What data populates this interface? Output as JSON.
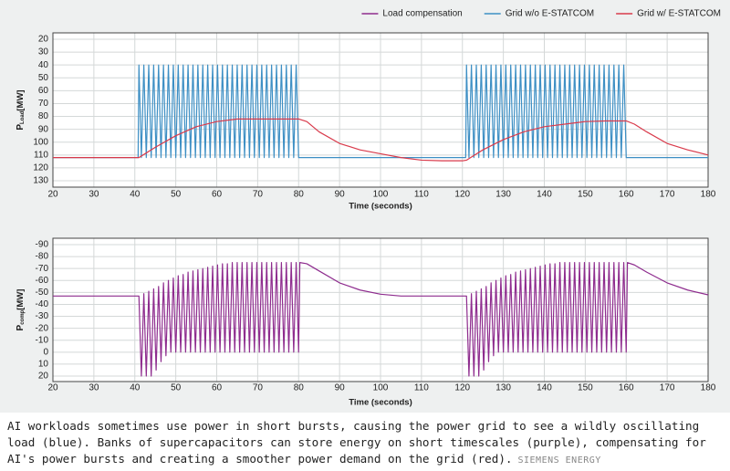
{
  "chart_data": [
    {
      "type": "line",
      "x_label": "Time (seconds)",
      "y_label": {
        "symbol": "P",
        "subscript": "Load",
        "unit": "[MW]"
      },
      "xlim": [
        20,
        180
      ],
      "xticks": [
        20,
        30,
        40,
        50,
        60,
        70,
        80,
        90,
        100,
        110,
        120,
        130,
        140,
        150,
        160,
        170,
        180
      ],
      "ylim": [
        130,
        20
      ],
      "yticks": [
        20,
        30,
        40,
        50,
        60,
        70,
        80,
        90,
        100,
        110,
        120,
        130
      ],
      "grid": true,
      "legend": "top-right",
      "series": [
        {
          "name": "Grid w/o E-STATCOM",
          "color": "#3d8fc4",
          "x": [
            20,
            40.8,
            41,
            41.6,
            42.2,
            42.8,
            43.4,
            44,
            44.6,
            45.2,
            45.8,
            46.4,
            47,
            47.6,
            48.2,
            48.8,
            49.4,
            50,
            50.6,
            51.2,
            51.8,
            52.4,
            53,
            53.6,
            54.2,
            54.8,
            55.4,
            56,
            56.6,
            57.2,
            57.8,
            58.4,
            59,
            59.6,
            60.2,
            60.8,
            61.4,
            62,
            62.6,
            63.2,
            63.8,
            64.4,
            65,
            65.6,
            66.2,
            66.8,
            67.4,
            68,
            68.6,
            69.2,
            69.8,
            70.4,
            71,
            71.6,
            72.2,
            72.8,
            73.4,
            74,
            74.6,
            75.2,
            75.8,
            76.4,
            77,
            77.6,
            78.2,
            78.8,
            79.4,
            80,
            120.8,
            121,
            121.6,
            122.2,
            122.8,
            123.4,
            124,
            124.6,
            125.2,
            125.8,
            126.4,
            127,
            127.6,
            128.2,
            128.8,
            129.4,
            130,
            130.6,
            131.2,
            131.8,
            132.4,
            133,
            133.6,
            134.2,
            134.8,
            135.4,
            136,
            136.6,
            137.2,
            137.8,
            138.4,
            139,
            139.6,
            140.2,
            140.8,
            141.4,
            142,
            142.6,
            143.2,
            143.8,
            144.4,
            145,
            145.6,
            146.2,
            146.8,
            147.4,
            148,
            148.6,
            149.2,
            149.8,
            150.4,
            151,
            151.6,
            152.2,
            152.8,
            153.4,
            154,
            154.6,
            155.2,
            155.8,
            156.4,
            157,
            157.6,
            158.2,
            158.8,
            159.4,
            160,
            180
          ],
          "values": [
            112,
            112,
            40,
            112,
            40,
            112,
            40,
            112,
            40,
            112,
            40,
            112,
            40,
            112,
            40,
            112,
            40,
            112,
            40,
            112,
            40,
            112,
            40,
            112,
            40,
            112,
            40,
            112,
            40,
            112,
            40,
            112,
            40,
            112,
            40,
            112,
            40,
            112,
            40,
            112,
            40,
            112,
            40,
            112,
            40,
            112,
            40,
            112,
            40,
            112,
            40,
            112,
            40,
            112,
            40,
            112,
            40,
            112,
            40,
            112,
            40,
            112,
            40,
            112,
            40,
            112,
            40,
            112,
            112,
            40,
            112,
            40,
            112,
            40,
            112,
            40,
            112,
            40,
            112,
            40,
            112,
            40,
            112,
            40,
            112,
            40,
            112,
            40,
            112,
            40,
            112,
            40,
            112,
            40,
            112,
            40,
            112,
            40,
            112,
            40,
            112,
            40,
            112,
            40,
            112,
            40,
            112,
            40,
            112,
            40,
            112,
            40,
            112,
            40,
            112,
            40,
            112,
            40,
            112,
            40,
            112,
            40,
            112,
            40,
            112,
            40,
            112,
            40,
            112,
            40,
            112,
            40,
            112,
            40,
            112,
            112
          ]
        },
        {
          "name": "Grid w/ E-STATCOM",
          "color": "#d93a4b",
          "x": [
            20,
            40,
            41,
            42,
            45,
            50,
            55,
            60,
            65,
            70,
            80,
            82,
            85,
            90,
            95,
            100,
            105,
            110,
            115,
            120,
            121,
            122,
            125,
            130,
            135,
            140,
            145,
            150,
            155,
            160,
            162,
            165,
            170,
            175,
            180
          ],
          "values": [
            112,
            112,
            112,
            110,
            104,
            95,
            88,
            84,
            82,
            82,
            82,
            84,
            92,
            101,
            106,
            109,
            112,
            114,
            114.5,
            114.5,
            114,
            112,
            106,
            98,
            92,
            88,
            86,
            84,
            83.5,
            83.5,
            86,
            92,
            101,
            106,
            110
          ]
        }
      ]
    },
    {
      "type": "line",
      "x_label": "Time (seconds)",
      "y_label": {
        "symbol": "P",
        "subscript": "comp",
        "unit": "[MW]"
      },
      "xlim": [
        20,
        180
      ],
      "xticks": [
        20,
        30,
        40,
        50,
        60,
        70,
        80,
        90,
        100,
        110,
        120,
        130,
        140,
        150,
        160,
        170,
        180
      ],
      "ylim": [
        20,
        -90
      ],
      "yticks": [
        -90,
        -80,
        -70,
        -60,
        -50,
        -40,
        -30,
        -20,
        -10,
        0,
        10,
        20
      ],
      "grid": true,
      "series": [
        {
          "name": "Load compensation",
          "color": "#8e2c8e",
          "x": [
            20,
            40.8,
            41,
            41.6,
            42.2,
            42.8,
            43.4,
            44,
            44.6,
            45.2,
            45.8,
            46.4,
            47,
            47.6,
            48.2,
            48.8,
            49.4,
            50,
            50.6,
            51.2,
            51.8,
            52.4,
            53,
            53.6,
            54.2,
            54.8,
            55.4,
            56,
            56.6,
            57.2,
            57.8,
            58.4,
            59,
            59.6,
            60.2,
            60.8,
            61.4,
            62,
            62.6,
            63.2,
            63.8,
            64.4,
            65,
            65.6,
            66.2,
            66.8,
            67.4,
            68,
            68.6,
            69.2,
            69.8,
            70.4,
            71,
            71.6,
            72.2,
            72.8,
            73.4,
            74,
            74.6,
            75.2,
            75.8,
            76.4,
            77,
            77.6,
            78.2,
            78.8,
            79.4,
            80,
            80.3,
            82,
            85,
            90,
            95,
            100,
            105,
            120.8,
            121,
            121.6,
            122.2,
            122.8,
            123.4,
            124,
            124.6,
            125.2,
            125.8,
            126.4,
            127,
            127.6,
            128.2,
            128.8,
            129.4,
            130,
            130.6,
            131.2,
            131.8,
            132.4,
            133,
            133.6,
            134.2,
            134.8,
            135.4,
            136,
            136.6,
            137.2,
            137.8,
            138.4,
            139,
            139.6,
            140.2,
            140.8,
            141.4,
            142,
            142.6,
            143.2,
            143.8,
            144.4,
            145,
            145.6,
            146.2,
            146.8,
            147.4,
            148,
            148.6,
            149.2,
            149.8,
            150.4,
            151,
            151.6,
            152.2,
            152.8,
            153.4,
            154,
            154.6,
            155.2,
            155.8,
            156.4,
            157,
            157.6,
            158.2,
            158.8,
            159.4,
            160,
            160.3,
            162,
            165,
            170,
            175,
            180
          ],
          "values": [
            -47,
            -47,
            -47,
            20,
            -49,
            20,
            -51,
            20,
            -53,
            15,
            -55,
            8,
            -58,
            3,
            -60,
            0,
            -62,
            0,
            -64,
            0,
            -65,
            0,
            -67,
            0,
            -68,
            0,
            -69,
            0,
            -70,
            0,
            -71,
            0,
            -72,
            0,
            -73,
            0,
            -74,
            0,
            -74,
            0,
            -75,
            0,
            -75,
            0,
            -75,
            0,
            -75,
            0,
            -75,
            0,
            -75,
            0,
            -75,
            0,
            -75,
            0,
            -75,
            0,
            -75,
            0,
            -75,
            0,
            -75,
            0,
            -75,
            0,
            -75,
            0,
            -75,
            -74,
            -68,
            -58,
            -52,
            -48.5,
            -47,
            -47,
            -47,
            20,
            -49,
            20,
            -51,
            20,
            -53,
            15,
            -55,
            8,
            -58,
            3,
            -60,
            0,
            -62,
            0,
            -64,
            0,
            -65,
            0,
            -67,
            0,
            -68,
            0,
            -69,
            0,
            -70,
            0,
            -71,
            0,
            -72,
            0,
            -73,
            0,
            -74,
            0,
            -74,
            0,
            -75,
            0,
            -75,
            0,
            -75,
            0,
            -75,
            0,
            -75,
            0,
            -75,
            0,
            -75,
            0,
            -75,
            0,
            -75,
            0,
            -75,
            0,
            -75,
            0,
            -75,
            0,
            -75,
            0,
            -75,
            0,
            -75,
            -73,
            -67,
            -58,
            -52,
            -48
          ]
        }
      ]
    }
  ],
  "caption": {
    "text": "AI workloads sometimes use power in short bursts, causing the power grid to see a wildly oscillating load (blue). Banks of supercapacitors can store energy on short timescales (purple), compensating for AI's power bursts and creating a smoother power demand on the grid (red).",
    "credit": "SIEMENS ENERGY"
  }
}
